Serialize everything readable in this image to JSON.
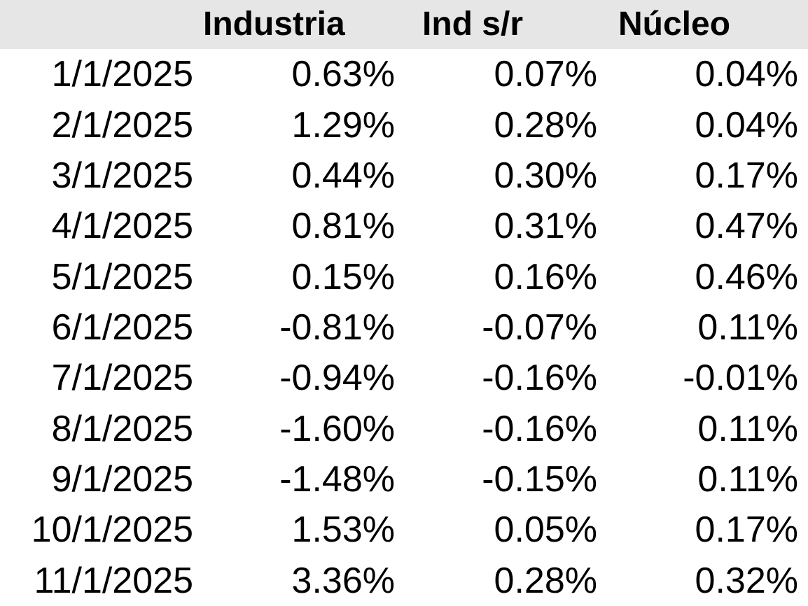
{
  "colors": {
    "header_bg": "#E6E6E6",
    "text": "#000000",
    "row_bg": "#FFFFFF"
  },
  "table": {
    "columns": [
      {
        "label": ""
      },
      {
        "label": "Industria"
      },
      {
        "label": "Ind s/r"
      },
      {
        "label": "Núcleo"
      }
    ],
    "rows": [
      {
        "date": "1/1/2025",
        "industria": "0.63%",
        "ind_sr": "0.07%",
        "nucleo": "0.04%"
      },
      {
        "date": "2/1/2025",
        "industria": "1.29%",
        "ind_sr": "0.28%",
        "nucleo": "0.04%"
      },
      {
        "date": "3/1/2025",
        "industria": "0.44%",
        "ind_sr": "0.30%",
        "nucleo": "0.17%"
      },
      {
        "date": "4/1/2025",
        "industria": "0.81%",
        "ind_sr": "0.31%",
        "nucleo": "0.47%"
      },
      {
        "date": "5/1/2025",
        "industria": "0.15%",
        "ind_sr": "0.16%",
        "nucleo": "0.46%"
      },
      {
        "date": "6/1/2025",
        "industria": "-0.81%",
        "ind_sr": "-0.07%",
        "nucleo": "0.11%"
      },
      {
        "date": "7/1/2025",
        "industria": "-0.94%",
        "ind_sr": "-0.16%",
        "nucleo": "-0.01%"
      },
      {
        "date": "8/1/2025",
        "industria": "-1.60%",
        "ind_sr": "-0.16%",
        "nucleo": "0.11%"
      },
      {
        "date": "9/1/2025",
        "industria": "-1.48%",
        "ind_sr": "-0.15%",
        "nucleo": "0.11%"
      },
      {
        "date": "10/1/2025",
        "industria": "1.53%",
        "ind_sr": "0.05%",
        "nucleo": "0.17%"
      },
      {
        "date": "11/1/2025",
        "industria": "3.36%",
        "ind_sr": "0.28%",
        "nucleo": "0.32%"
      }
    ]
  },
  "chart_data": {
    "type": "table",
    "categories": [
      "1/1/2025",
      "2/1/2025",
      "3/1/2025",
      "4/1/2025",
      "5/1/2025",
      "6/1/2025",
      "7/1/2025",
      "8/1/2025",
      "9/1/2025",
      "10/1/2025",
      "11/1/2025"
    ],
    "series": [
      {
        "name": "Industria",
        "values": [
          0.63,
          1.29,
          0.44,
          0.81,
          0.15,
          -0.81,
          -0.94,
          -1.6,
          -1.48,
          1.53,
          3.36
        ]
      },
      {
        "name": "Ind s/r",
        "values": [
          0.07,
          0.28,
          0.3,
          0.31,
          0.16,
          -0.07,
          -0.16,
          -0.16,
          -0.15,
          0.05,
          0.28
        ]
      },
      {
        "name": "Núcleo",
        "values": [
          0.04,
          0.04,
          0.17,
          0.47,
          0.46,
          0.11,
          -0.01,
          0.11,
          0.11,
          0.17,
          0.32
        ]
      }
    ],
    "value_unit": "percent",
    "title": "",
    "layout": {
      "header_background": "#E6E6E6",
      "values_align": "right",
      "grid": false
    }
  }
}
